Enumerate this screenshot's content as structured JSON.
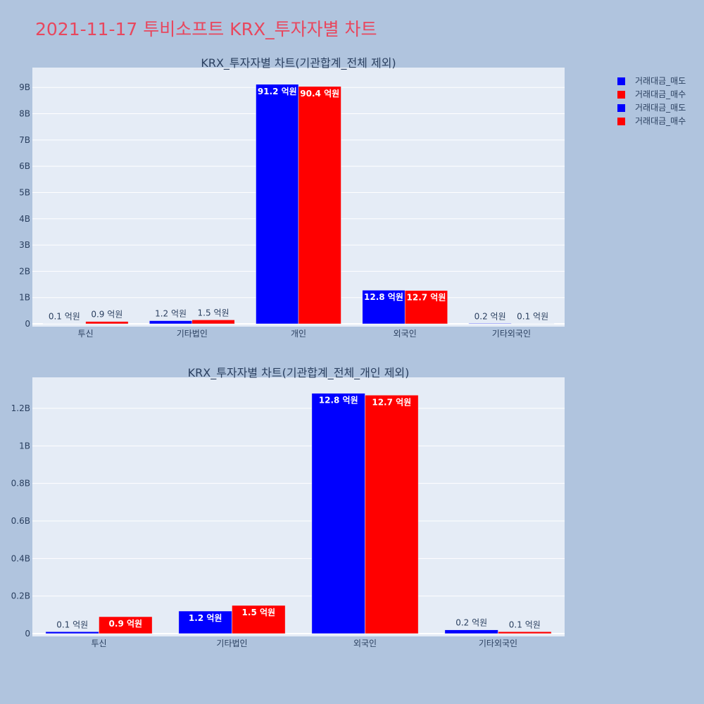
{
  "title": "2021-11-17 투비소프트 KRX_투자자별 차트",
  "colors": {
    "sell": "#0000ff",
    "buy": "#ff0000",
    "plot_bg": "#e5ecf6",
    "page_bg": "#b0c4de"
  },
  "legend": [
    {
      "name": "거래대금_매도",
      "color": "#0000ff"
    },
    {
      "name": "거래대금_매수",
      "color": "#ff0000"
    },
    {
      "name": "거래대금_매도",
      "color": "#0000ff"
    },
    {
      "name": "거래대금_매수",
      "color": "#ff0000"
    }
  ],
  "chart_data": [
    {
      "type": "bar",
      "title": "KRX_투자자별 차트(기관합계_전체 제외)",
      "categories": [
        "투신",
        "기타법인",
        "개인",
        "외국인",
        "기타외국인"
      ],
      "series": [
        {
          "name": "거래대금_매도",
          "values": [
            10000000,
            120000000,
            9120000000,
            1280000000,
            20000000
          ],
          "labels": [
            "0.1 억원",
            "1.2 억원",
            "91.2 억원",
            "12.8 억원",
            "0.2 억원"
          ]
        },
        {
          "name": "거래대금_매수",
          "values": [
            90000000,
            150000000,
            9040000000,
            1270000000,
            10000000
          ],
          "labels": [
            "0.9 억원",
            "1.5 억원",
            "90.4 억원",
            "12.7 억원",
            "0.1 억원"
          ]
        }
      ],
      "yticks": [
        "0",
        "1B",
        "2B",
        "3B",
        "4B",
        "5B",
        "6B",
        "7B",
        "8B",
        "9B"
      ],
      "ylim": [
        0,
        9650000000
      ],
      "grid": true
    },
    {
      "type": "bar",
      "title": "KRX_투자자별 차트(기관합계_전체_개인 제외)",
      "categories": [
        "투신",
        "기타법인",
        "외국인",
        "기타외국인"
      ],
      "series": [
        {
          "name": "거래대금_매도",
          "values": [
            10000000,
            120000000,
            1280000000,
            20000000
          ],
          "labels": [
            "0.1 억원",
            "1.2 억원",
            "12.8 억원",
            "0.2 억원"
          ]
        },
        {
          "name": "거래대금_매수",
          "values": [
            90000000,
            150000000,
            1270000000,
            10000000
          ],
          "labels": [
            "0.9 억원",
            "1.5 억원",
            "12.7 억원",
            "0.1 억원"
          ]
        }
      ],
      "yticks": [
        "0",
        "0.2B",
        "0.4B",
        "0.6B",
        "0.8B",
        "1B",
        "1.2B"
      ],
      "ylim": [
        0,
        1350000000
      ],
      "grid": true
    }
  ]
}
